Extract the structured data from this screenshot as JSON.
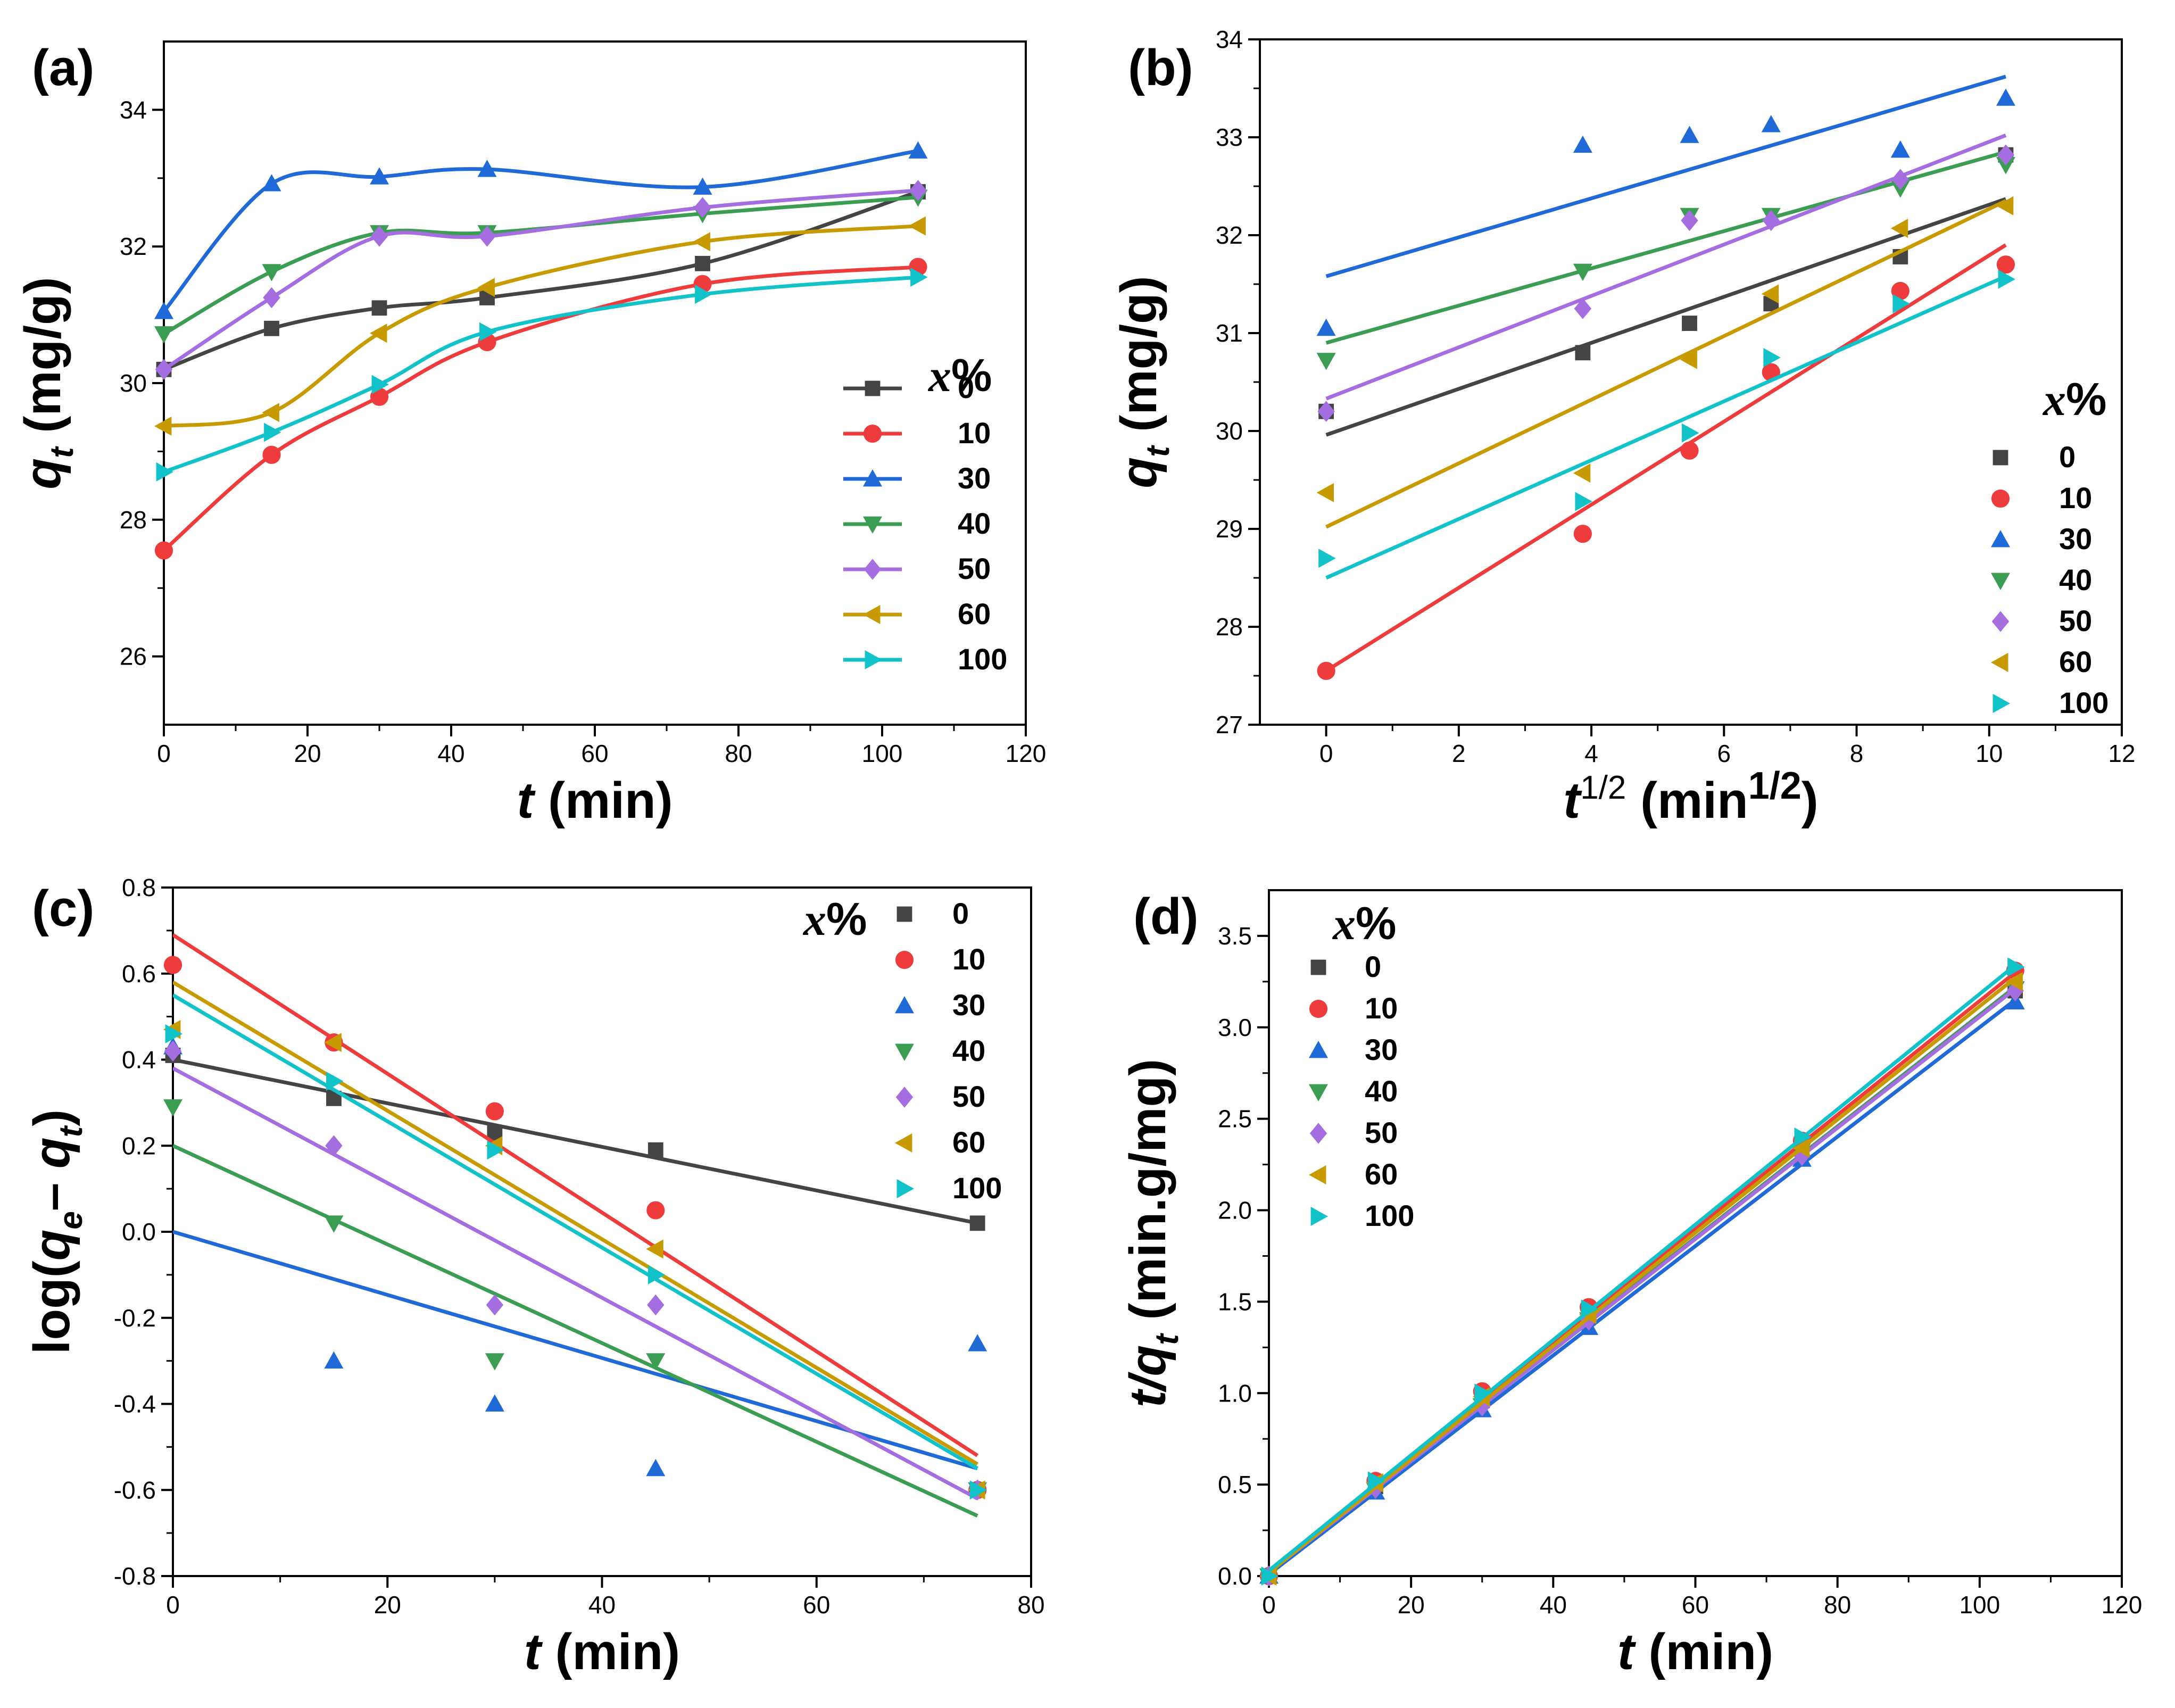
{
  "chart_data": [
    {
      "panel": "(a)",
      "type": "line",
      "xlabel_italic": "t",
      "xlabel_rest": " (min)",
      "ylabel_italic": "q",
      "ylabel_sub": "t",
      "ylabel_rest": " (mg/g)",
      "xlim": [
        0,
        120
      ],
      "ylim": [
        25,
        35
      ],
      "xticks": [
        0,
        20,
        40,
        60,
        80,
        100,
        120
      ],
      "yticks": [
        26,
        28,
        30,
        32,
        34
      ],
      "legend_title": "x%",
      "legend_position": "bottom-right",
      "lines": "smooth",
      "x": [
        0,
        15,
        30,
        45,
        75,
        105
      ],
      "series": [
        {
          "name": "0",
          "marker": "square",
          "color": "#444444",
          "values": [
            30.2,
            30.8,
            31.1,
            31.25,
            31.75,
            32.8
          ]
        },
        {
          "name": "10",
          "marker": "circle",
          "color": "#ee3b3b",
          "values": [
            27.55,
            28.95,
            29.8,
            30.6,
            31.45,
            31.7
          ]
        },
        {
          "name": "30",
          "marker": "triangle-up",
          "color": "#1f6ad6",
          "values": [
            31.05,
            32.92,
            33.02,
            33.13,
            32.87,
            33.4
          ]
        },
        {
          "name": "40",
          "marker": "triangle-down",
          "color": "#3a9d52",
          "values": [
            30.72,
            31.63,
            32.2,
            32.2,
            32.48,
            32.72
          ]
        },
        {
          "name": "50",
          "marker": "diamond",
          "color": "#a46ee0",
          "values": [
            30.2,
            31.25,
            32.15,
            32.15,
            32.57,
            32.82
          ]
        },
        {
          "name": "60",
          "marker": "triangle-left",
          "color": "#c79a00",
          "values": [
            29.37,
            29.57,
            30.73,
            31.4,
            32.07,
            32.3
          ]
        },
        {
          "name": "100",
          "marker": "triangle-right",
          "color": "#11c2c8",
          "values": [
            28.7,
            29.28,
            29.98,
            30.75,
            31.3,
            31.55
          ]
        }
      ]
    },
    {
      "panel": "(b)",
      "type": "scatter",
      "xlabel_italic": "t",
      "xlabel_sup": "1/2",
      "xlabel_rest": " (min",
      "xlabel_sup2": "1/2",
      "xlabel_end": ")",
      "ylabel_italic": "q",
      "ylabel_sub": "t",
      "ylabel_rest": " (mg/g)",
      "xlim": [
        -1,
        12
      ],
      "ylim": [
        27,
        34
      ],
      "xticks": [
        0,
        2,
        4,
        6,
        8,
        10,
        12
      ],
      "yticks": [
        27,
        28,
        29,
        30,
        31,
        32,
        33,
        34
      ],
      "legend_title": "x%",
      "legend_position": "bottom-right",
      "lines": "linear-fit",
      "x": [
        0,
        3.87,
        5.48,
        6.71,
        8.66,
        10.25
      ],
      "series": [
        {
          "name": "0",
          "marker": "square",
          "color": "#444444",
          "values": [
            30.2,
            30.8,
            31.1,
            31.3,
            31.78,
            32.82
          ],
          "fit": [
            29.96,
            32.37
          ]
        },
        {
          "name": "10",
          "marker": "circle",
          "color": "#ee3b3b",
          "values": [
            27.55,
            28.95,
            29.8,
            30.6,
            31.43,
            31.7
          ],
          "fit": [
            27.55,
            31.9
          ]
        },
        {
          "name": "30",
          "marker": "triangle-up",
          "color": "#1f6ad6",
          "values": [
            31.05,
            32.92,
            33.02,
            33.13,
            32.87,
            33.4
          ],
          "fit": [
            31.58,
            33.62
          ]
        },
        {
          "name": "40",
          "marker": "triangle-down",
          "color": "#3a9d52",
          "values": [
            30.72,
            31.63,
            32.2,
            32.2,
            32.48,
            32.72
          ],
          "fit": [
            30.9,
            32.85
          ]
        },
        {
          "name": "50",
          "marker": "diamond",
          "color": "#a46ee0",
          "values": [
            30.2,
            31.25,
            32.15,
            32.15,
            32.57,
            32.82
          ],
          "fit": [
            30.33,
            33.02
          ]
        },
        {
          "name": "60",
          "marker": "triangle-left",
          "color": "#c79a00",
          "values": [
            29.37,
            29.57,
            30.73,
            31.4,
            32.07,
            32.3
          ],
          "fit": [
            29.02,
            32.35
          ]
        },
        {
          "name": "100",
          "marker": "triangle-right",
          "color": "#11c2c8",
          "values": [
            28.7,
            29.28,
            29.98,
            30.75,
            31.3,
            31.55
          ],
          "fit": [
            28.5,
            31.58
          ]
        }
      ]
    },
    {
      "panel": "(c)",
      "type": "scatter",
      "xlabel_italic": "t",
      "xlabel_rest": " (min)",
      "ylabel_pre": "log(",
      "ylabel_italic": "q",
      "ylabel_sub": "e",
      "ylabel_mid": "– ",
      "ylabel_italic2": "q",
      "ylabel_sub2": "t",
      "ylabel_rest": ")",
      "xlim": [
        0,
        80
      ],
      "ylim": [
        -0.8,
        0.8
      ],
      "xticks": [
        0,
        20,
        40,
        60,
        80
      ],
      "yticks": [
        -0.8,
        -0.6,
        -0.4,
        -0.2,
        0.0,
        0.2,
        0.4,
        0.6,
        0.8
      ],
      "legend_title": "x%",
      "legend_position": "top-right",
      "lines": "linear-fit",
      "x": [
        0,
        15,
        30,
        45,
        75
      ],
      "series": [
        {
          "name": "0",
          "marker": "square",
          "color": "#444444",
          "values": [
            0.41,
            0.31,
            0.23,
            0.19,
            0.02
          ],
          "fit": [
            0.4,
            0.02
          ]
        },
        {
          "name": "10",
          "marker": "circle",
          "color": "#ee3b3b",
          "values": [
            0.62,
            0.44,
            0.28,
            0.05,
            -0.6
          ],
          "fit": [
            0.69,
            -0.52
          ]
        },
        {
          "name": "30",
          "marker": "triangle-up",
          "color": "#1f6ad6",
          "values": [
            0.43,
            -0.3,
            -0.4,
            -0.55,
            -0.26
          ],
          "fit": [
            0.0,
            -0.55
          ]
        },
        {
          "name": "40",
          "marker": "triangle-down",
          "color": "#3a9d52",
          "values": [
            0.29,
            0.02,
            -0.3,
            -0.3,
            -0.6
          ],
          "fit": [
            0.2,
            -0.66
          ]
        },
        {
          "name": "50",
          "marker": "diamond",
          "color": "#a46ee0",
          "values": [
            0.42,
            0.2,
            -0.17,
            -0.17,
            -0.6
          ],
          "fit": [
            0.38,
            -0.62
          ]
        },
        {
          "name": "60",
          "marker": "triangle-left",
          "color": "#c79a00",
          "values": [
            0.47,
            0.44,
            0.2,
            -0.04,
            -0.6
          ],
          "fit": [
            0.58,
            -0.54
          ]
        },
        {
          "name": "100",
          "marker": "triangle-right",
          "color": "#11c2c8",
          "values": [
            0.46,
            0.35,
            0.19,
            -0.1,
            -0.6
          ],
          "fit": [
            0.55,
            -0.55
          ]
        }
      ]
    },
    {
      "panel": "(d)",
      "type": "scatter",
      "xlabel_italic": "t",
      "xlabel_rest": " (min)",
      "ylabel_italic": "t/q",
      "ylabel_sub": "t",
      "ylabel_rest": " (min.g/mg)",
      "xlim": [
        0,
        120
      ],
      "ylim": [
        0,
        3.75
      ],
      "xticks": [
        0,
        20,
        40,
        60,
        80,
        100,
        120
      ],
      "yticks": [
        0.0,
        0.5,
        1.0,
        1.5,
        2.0,
        2.5,
        3.0,
        3.5
      ],
      "legend_title": "x%",
      "legend_position": "top-left",
      "lines": "linear-fit",
      "x": [
        0,
        15,
        30,
        45,
        75,
        105
      ],
      "series": [
        {
          "name": "0",
          "marker": "square",
          "color": "#444444",
          "values": [
            0.0,
            0.49,
            0.96,
            1.44,
            2.36,
            3.2
          ],
          "fit": [
            0.02,
            3.22
          ]
        },
        {
          "name": "10",
          "marker": "circle",
          "color": "#ee3b3b",
          "values": [
            0.0,
            0.52,
            1.01,
            1.47,
            2.38,
            3.31
          ],
          "fit": [
            0.03,
            3.3
          ]
        },
        {
          "name": "30",
          "marker": "triangle-up",
          "color": "#1f6ad6",
          "values": [
            0.0,
            0.46,
            0.91,
            1.36,
            2.28,
            3.14
          ],
          "fit": [
            0.01,
            3.15
          ]
        },
        {
          "name": "40",
          "marker": "triangle-down",
          "color": "#3a9d52",
          "values": [
            0.0,
            0.47,
            0.93,
            1.4,
            2.31,
            3.21
          ],
          "fit": [
            0.02,
            3.22
          ]
        },
        {
          "name": "50",
          "marker": "diamond",
          "color": "#a46ee0",
          "values": [
            0.0,
            0.48,
            0.93,
            1.4,
            2.3,
            3.2
          ],
          "fit": [
            0.02,
            3.21
          ]
        },
        {
          "name": "60",
          "marker": "triangle-left",
          "color": "#c79a00",
          "values": [
            0.0,
            0.51,
            0.98,
            1.43,
            2.34,
            3.25
          ],
          "fit": [
            0.02,
            3.27
          ]
        },
        {
          "name": "100",
          "marker": "triangle-right",
          "color": "#11c2c8",
          "values": [
            0.0,
            0.52,
            1.0,
            1.46,
            2.4,
            3.33
          ],
          "fit": [
            0.03,
            3.34
          ]
        }
      ]
    }
  ]
}
